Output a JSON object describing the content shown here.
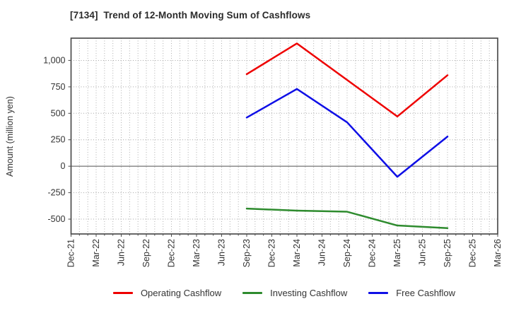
{
  "chart_data": {
    "type": "line",
    "title": "[7134]  Trend of 12-Month Moving Sum of Cashflows",
    "xlabel": "",
    "ylabel": "Amount (million yen)",
    "x_tick_labels": [
      "Dec-21",
      "Mar-22",
      "Jun-22",
      "Sep-22",
      "Dec-22",
      "Mar-23",
      "Jun-23",
      "Sep-23",
      "Dec-23",
      "Mar-24",
      "Jun-24",
      "Sep-24",
      "Dec-24",
      "Mar-25",
      "Jun-25",
      "Sep-25",
      "Dec-25",
      "Mar-26"
    ],
    "y_ticks": [
      -500,
      -250,
      0,
      250,
      500,
      750,
      1000
    ],
    "y_tick_labels": [
      "-500",
      "-250",
      "0",
      "250",
      "500",
      "750",
      "1,000"
    ],
    "ylim": [
      -640,
      1210
    ],
    "grid": true,
    "minor_x_grid": "monthly",
    "zero_line": true,
    "legend_position": "bottom-center",
    "series": [
      {
        "name": "Operating Cashflow",
        "color": "#ee0000",
        "x": [
          "Sep-23",
          "Mar-24",
          "Sep-24",
          "Mar-25",
          "Sep-25"
        ],
        "values": [
          870,
          1160,
          815,
          470,
          860
        ]
      },
      {
        "name": "Investing Cashflow",
        "color": "#2e8b2e",
        "x": [
          "Sep-23",
          "Mar-24",
          "Sep-24",
          "Mar-25",
          "Sep-25"
        ],
        "values": [
          -400,
          -420,
          -430,
          -560,
          -585
        ]
      },
      {
        "name": "Free Cashflow",
        "color": "#0f0fe6",
        "x": [
          "Sep-23",
          "Mar-24",
          "Sep-24",
          "Mar-25",
          "Sep-25"
        ],
        "values": [
          460,
          730,
          415,
          -100,
          280
        ]
      }
    ],
    "colors": {
      "frame": "#4d4d4d",
      "grid": "#b0b0b0",
      "zero_line": "#808080",
      "tick_text": "#333333",
      "title_text": "#2b2b2b"
    }
  }
}
